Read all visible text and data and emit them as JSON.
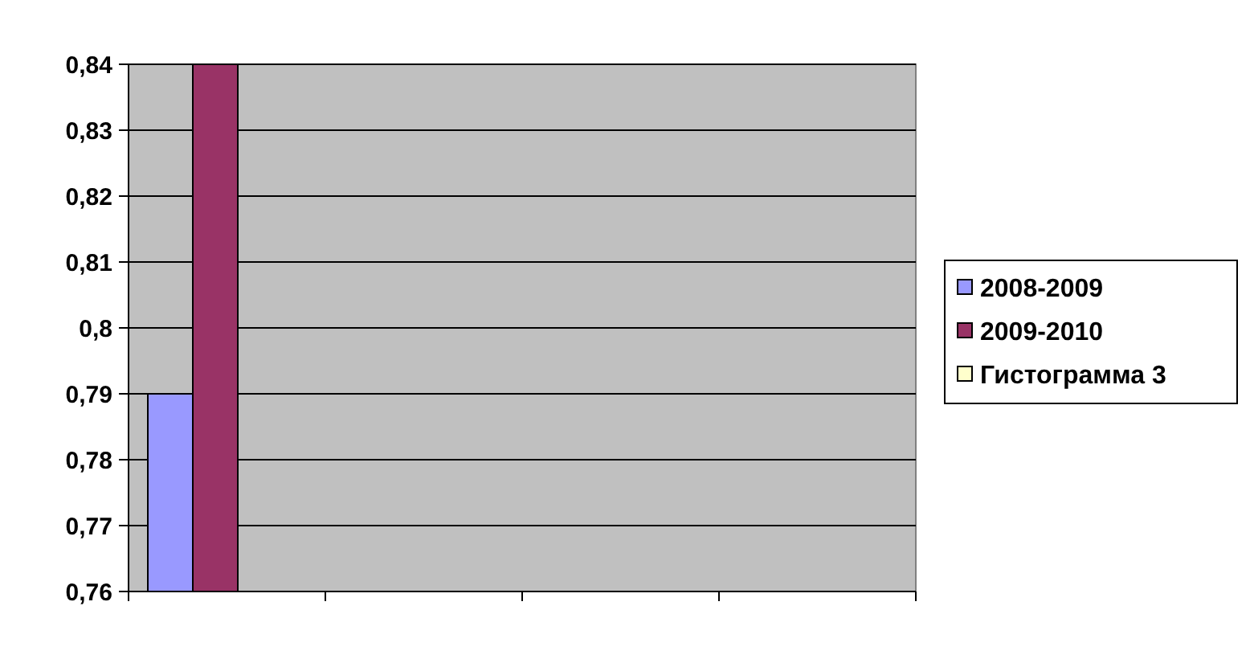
{
  "chart_data": {
    "type": "bar",
    "categories": [
      null,
      null,
      null,
      null
    ],
    "series": [
      {
        "name": "2008-2009",
        "color": "#9999ff",
        "values": [
          0.79,
          null,
          null,
          null
        ]
      },
      {
        "name": "2009-2010",
        "color": "#993366",
        "values": [
          0.84,
          null,
          null,
          null
        ]
      },
      {
        "name": "Гистограмма 3",
        "color": "#ffffcc",
        "values": [
          null,
          null,
          null,
          null
        ]
      }
    ],
    "ylim": [
      0.76,
      0.84
    ],
    "yticks": [
      {
        "value": 0.76,
        "label": "0,76"
      },
      {
        "value": 0.77,
        "label": "0,77"
      },
      {
        "value": 0.78,
        "label": "0,78"
      },
      {
        "value": 0.79,
        "label": "0,79"
      },
      {
        "value": 0.8,
        "label": "0,8"
      },
      {
        "value": 0.81,
        "label": "0,81"
      },
      {
        "value": 0.82,
        "label": "0,82"
      },
      {
        "value": 0.83,
        "label": "0,83"
      },
      {
        "value": 0.84,
        "label": "0,84"
      }
    ],
    "grid": "y",
    "legend": "right"
  }
}
